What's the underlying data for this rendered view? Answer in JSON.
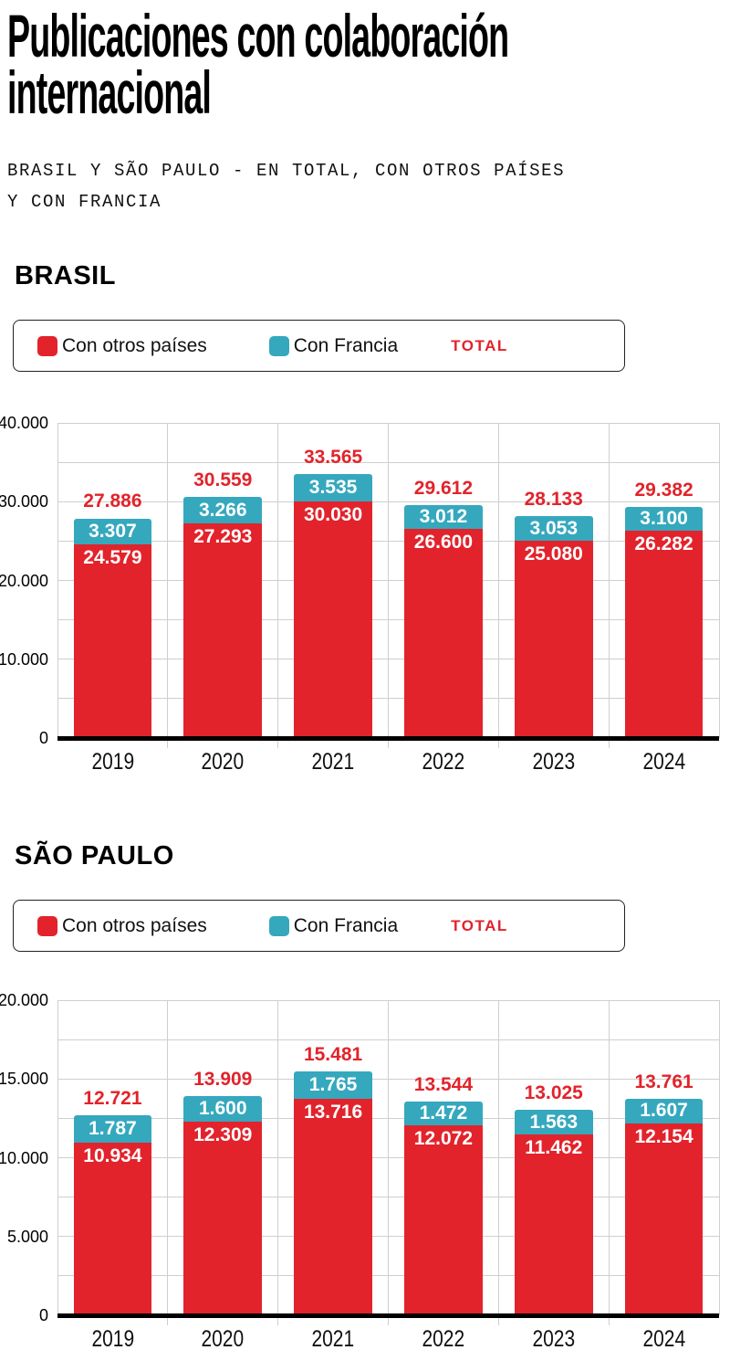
{
  "page": {
    "title": "Publicaciones con colaboración internacional",
    "subtitle": "BRASIL Y SÃO PAULO - EN TOTAL, CON OTROS PAÍSES Y CON FRANCIA"
  },
  "colors": {
    "red": "#e2232b",
    "teal": "#35a8be",
    "grid": "#cfcfcf",
    "axis": "#000000",
    "background": "#ffffff"
  },
  "chart_data": [
    {
      "type": "bar",
      "stacked": true,
      "section_title": "BRASIL",
      "legend": {
        "others": "Con otros países",
        "francia": "Con Francia",
        "total": "TOTAL"
      },
      "legend_position": "top",
      "grid": true,
      "categories": [
        "2019",
        "2020",
        "2021",
        "2022",
        "2023",
        "2024"
      ],
      "series": [
        {
          "name": "Con otros países",
          "color": "#e2232b",
          "values": [
            24579,
            27293,
            30030,
            26600,
            25080,
            26282
          ],
          "labels": [
            "24.579",
            "27.293",
            "30.030",
            "26.600",
            "25.080",
            "26.282"
          ]
        },
        {
          "name": "Con Francia",
          "color": "#35a8be",
          "values": [
            3307,
            3266,
            3535,
            3012,
            3053,
            3100
          ],
          "labels": [
            "3.307",
            "3.266",
            "3.535",
            "3.012",
            "3.053",
            "3.100"
          ]
        }
      ],
      "totals": {
        "values": [
          27886,
          30559,
          33565,
          29612,
          28133,
          29382
        ],
        "labels": [
          "27.886",
          "30.559",
          "33.565",
          "29.612",
          "28.133",
          "29.382"
        ]
      },
      "ylim": [
        0,
        40000
      ],
      "grid_step": 5000,
      "yticks": [
        {
          "v": 0,
          "label": "0"
        },
        {
          "v": 10000,
          "label": "10.000"
        },
        {
          "v": 20000,
          "label": "20.000"
        },
        {
          "v": 30000,
          "label": "30.000"
        },
        {
          "v": 40000,
          "label": "40.000"
        }
      ]
    },
    {
      "type": "bar",
      "stacked": true,
      "section_title": "SÃO PAULO",
      "legend": {
        "others": "Con otros países",
        "francia": "Con Francia",
        "total": "TOTAL"
      },
      "legend_position": "top",
      "grid": true,
      "categories": [
        "2019",
        "2020",
        "2021",
        "2022",
        "2023",
        "2024"
      ],
      "series": [
        {
          "name": "Con otros países",
          "color": "#e2232b",
          "values": [
            10934,
            12309,
            13716,
            12072,
            11462,
            12154
          ],
          "labels": [
            "10.934",
            "12.309",
            "13.716",
            "12.072",
            "11.462",
            "12.154"
          ]
        },
        {
          "name": "Con Francia",
          "color": "#35a8be",
          "values": [
            1787,
            1600,
            1765,
            1472,
            1563,
            1607
          ],
          "labels": [
            "1.787",
            "1.600",
            "1.765",
            "1.472",
            "1.563",
            "1.607"
          ]
        }
      ],
      "totals": {
        "values": [
          12721,
          13909,
          15481,
          13544,
          13025,
          13761
        ],
        "labels": [
          "12.721",
          "13.909",
          "15.481",
          "13.544",
          "13.025",
          "13.761"
        ]
      },
      "ylim": [
        0,
        20000
      ],
      "grid_step": 2500,
      "yticks": [
        {
          "v": 0,
          "label": "0"
        },
        {
          "v": 5000,
          "label": "5.000"
        },
        {
          "v": 10000,
          "label": "10.000"
        },
        {
          "v": 15000,
          "label": "15.000"
        },
        {
          "v": 20000,
          "label": "20.000"
        }
      ]
    }
  ]
}
